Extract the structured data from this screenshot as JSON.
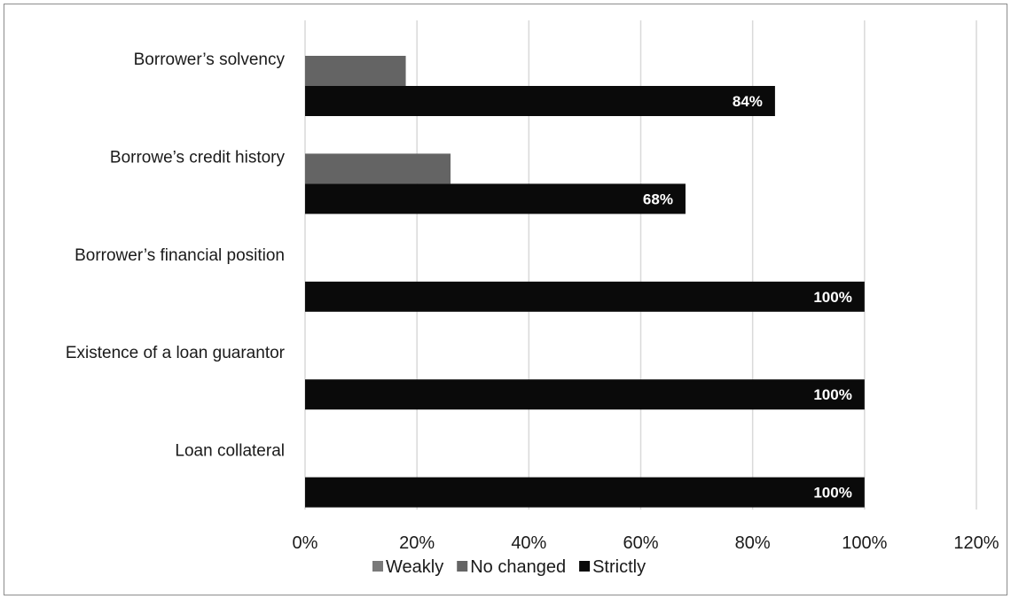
{
  "chart_data": {
    "type": "bar",
    "orientation": "horizontal",
    "categories": [
      "Borrower’s solvency",
      "Borrowe’s credit history",
      "Borrower’s financial position",
      "Existence of a loan guarantor",
      "Loan collateral"
    ],
    "series": [
      {
        "name": "Weakly",
        "values": [
          0,
          0,
          0,
          0,
          0
        ],
        "color": "#7a7a7a"
      },
      {
        "name": "No changed",
        "values": [
          18,
          26,
          0,
          0,
          0
        ],
        "color": "#646464"
      },
      {
        "name": "Strictly",
        "values": [
          84,
          68,
          100,
          100,
          100
        ],
        "color": "#0a0a0a"
      }
    ],
    "data_labels": [
      "84%",
      "68%",
      "100%",
      "100%",
      "100%"
    ],
    "xlim": [
      0,
      120
    ],
    "x_ticks": [
      "0%",
      "20%",
      "40%",
      "60%",
      "80%",
      "100%",
      "120%"
    ],
    "grid": true,
    "legend_position": "bottom",
    "title": "",
    "xlabel": "",
    "ylabel": ""
  }
}
